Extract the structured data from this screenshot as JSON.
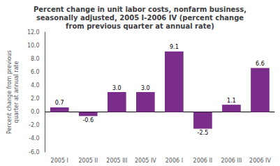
{
  "chart_data": {
    "type": "bar",
    "title": "Percent change in unit labor costs, nonfarm business,\nseasonally adjusted, 2005 I-2006 IV (percent change\nfrom previous quarter at annual rate)",
    "ylabel": "Percent change from previous\nquarter at annual rate",
    "categories": [
      "2005 I",
      "2005 II",
      "2005 III",
      "2005 IV",
      "2006 I",
      "2006 II",
      "2006 III",
      "2006 IV"
    ],
    "values": [
      0.7,
      -0.6,
      3.0,
      3.0,
      9.1,
      -2.5,
      1.1,
      6.6
    ],
    "value_labels": [
      "0.7",
      "-0.6",
      "3.0",
      "3.0",
      "9.1",
      "-2.5",
      "1.1",
      "6.6"
    ],
    "data_labels": true,
    "color": "#7B2D8B",
    "ylim": [
      -6.0,
      12.0
    ],
    "yticks": [
      {
        "value": -6.0,
        "label": "-6.0"
      },
      {
        "value": -4.0,
        "label": "-4.0"
      },
      {
        "value": -2.0,
        "label": "-2.0"
      },
      {
        "value": 0.0,
        "label": "0.0"
      },
      {
        "value": 2.0,
        "label": "2.0"
      },
      {
        "value": 4.0,
        "label": "4.0"
      },
      {
        "value": 6.0,
        "label": "6.0"
      },
      {
        "value": 8.0,
        "label": "8.0"
      },
      {
        "value": 10.0,
        "label": "10.0"
      },
      {
        "value": 12.0,
        "label": "12.0"
      }
    ],
    "grid": false
  }
}
